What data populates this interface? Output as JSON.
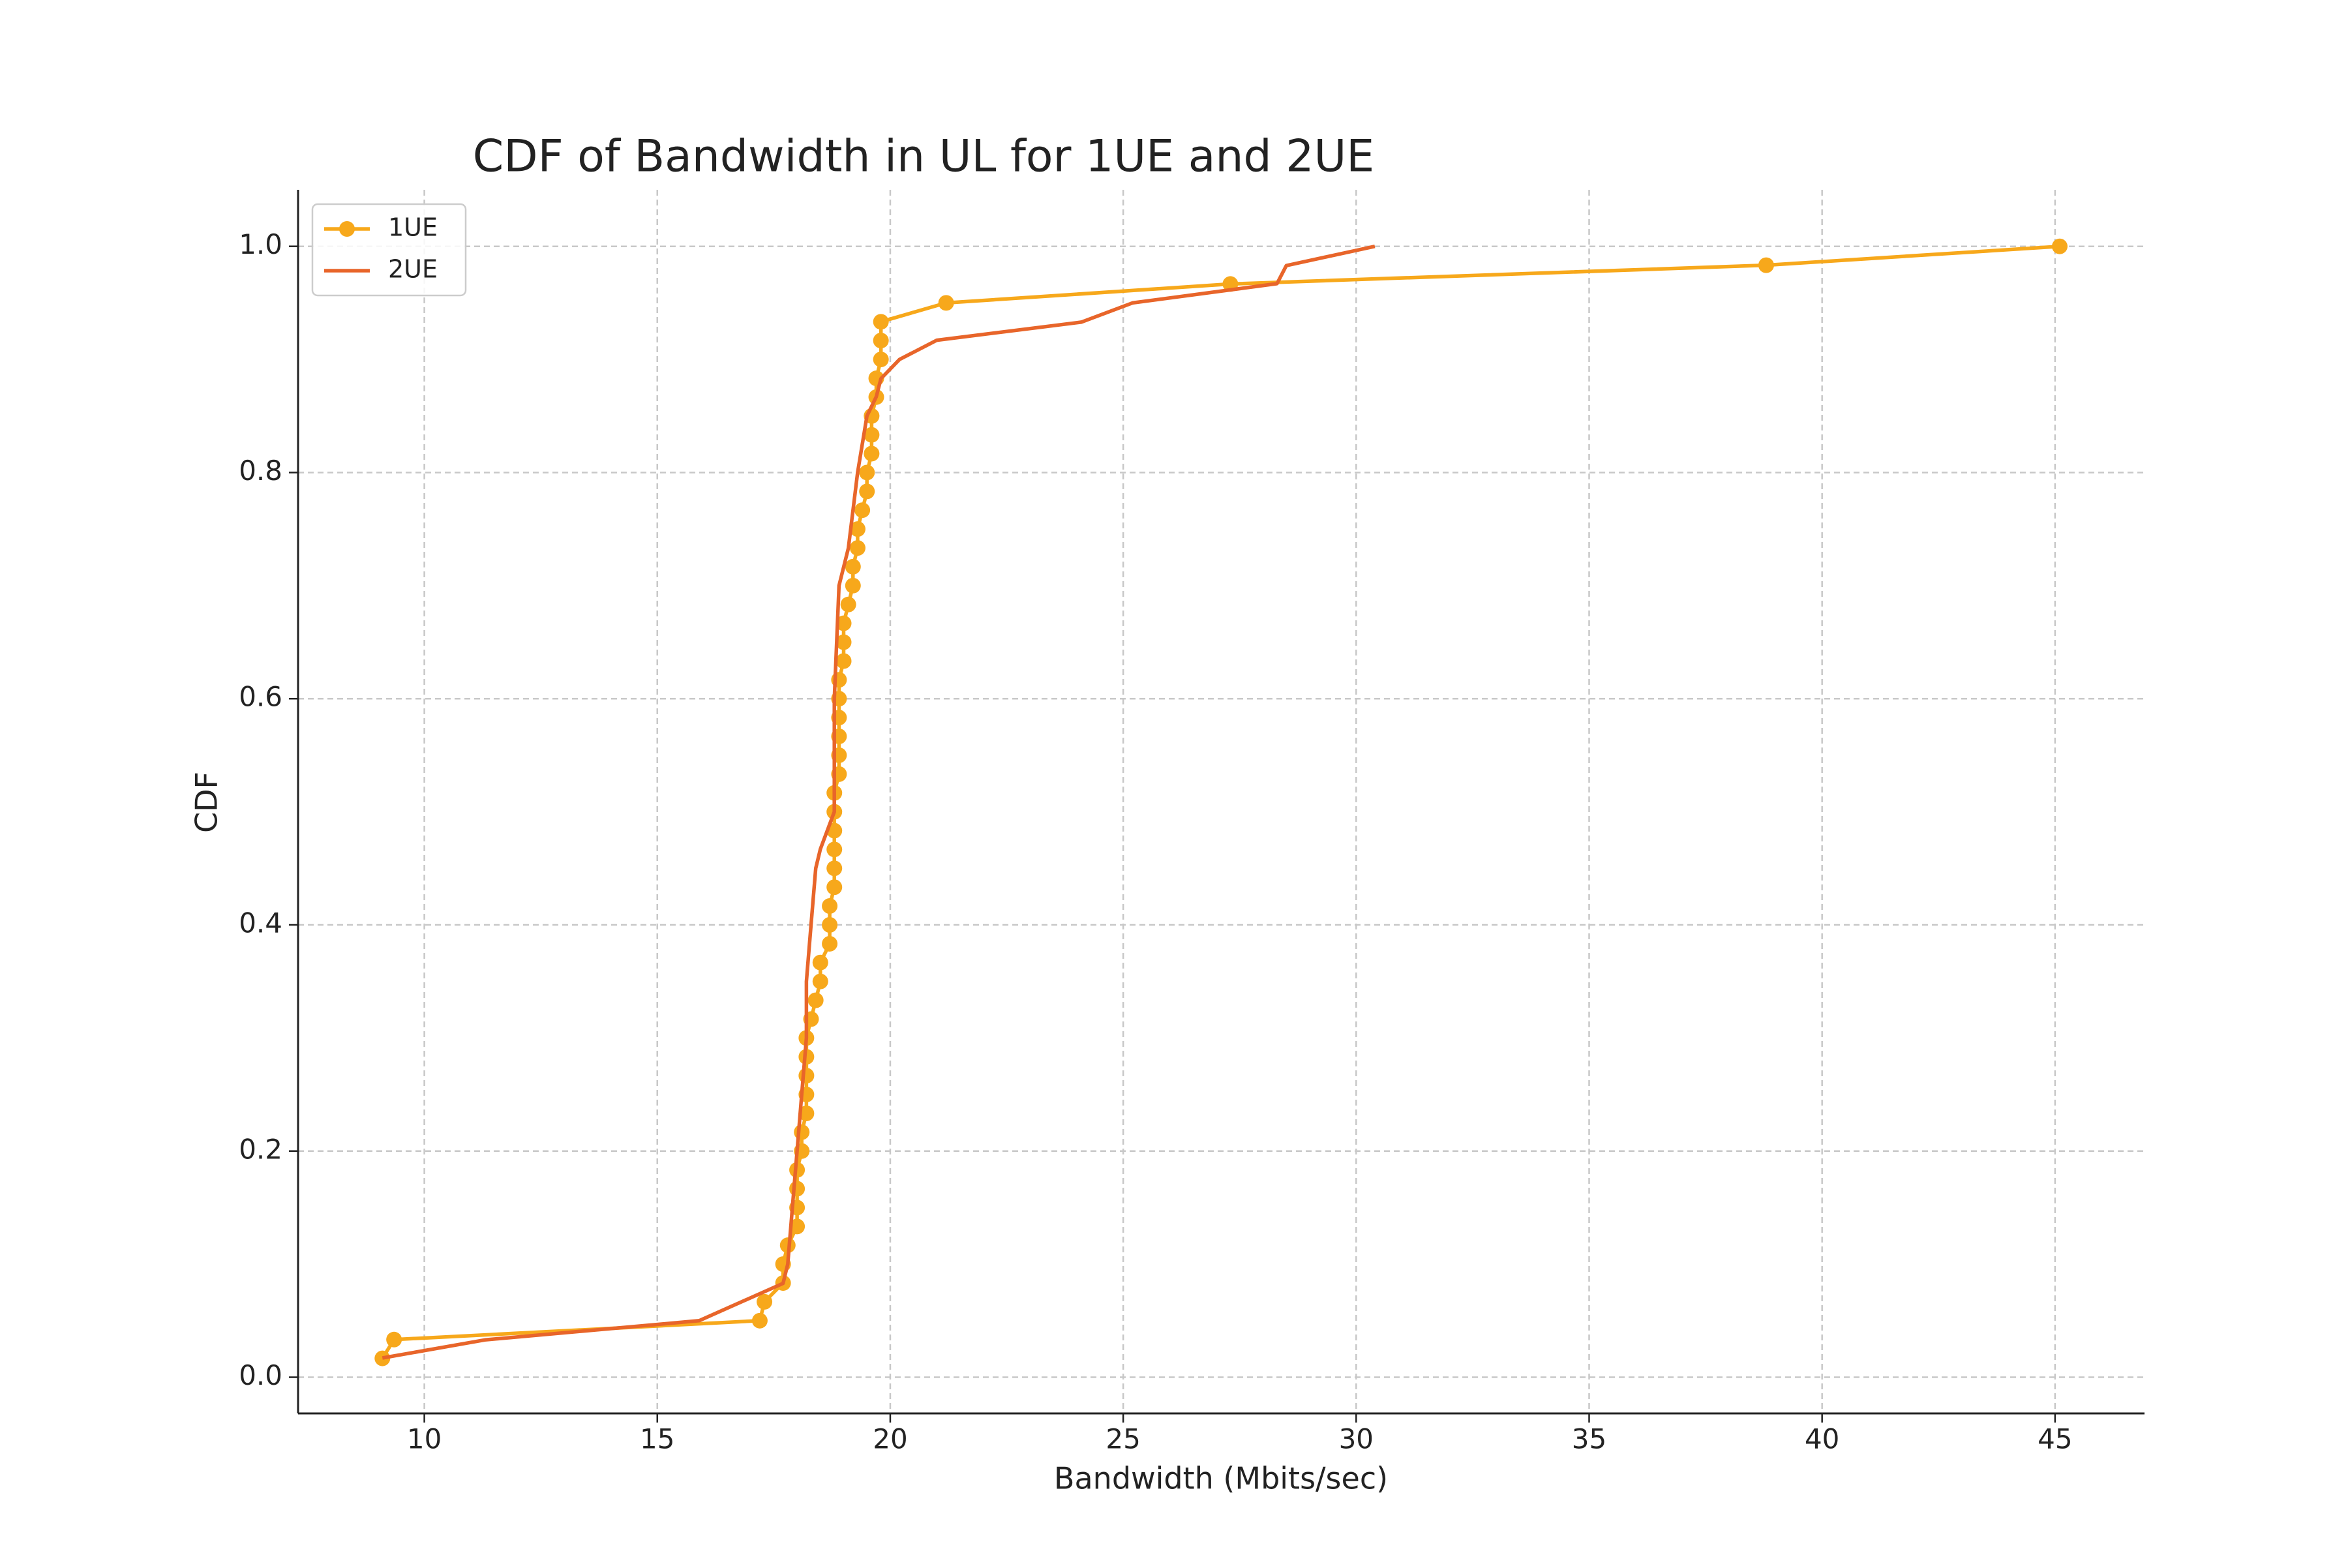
{
  "chart_data": {
    "type": "line",
    "title": "CDF of Bandwidth in UL for 1UE and 2UE",
    "x_label": "Bandwidth (Mbits/sec)",
    "y_label": "CDF",
    "xlim": [
      7.29,
      46.92
    ],
    "ylim": [
      -0.032,
      1.05
    ],
    "xticks": [
      10,
      15,
      20,
      25,
      30,
      35,
      40,
      45
    ],
    "yticks": [
      {
        "value": 0,
        "label": "0.0"
      },
      0.2,
      0.4,
      0.6,
      0.8,
      {
        "value": 1,
        "label": "1.0"
      }
    ],
    "grid": true,
    "legend": "upper-left",
    "series": [
      {
        "name": "1UE",
        "color": "#f7a81b",
        "marker": true,
        "x": [
          9.1,
          9.35,
          17.2,
          17.3,
          17.7,
          17.7,
          17.8,
          18.0,
          18.0,
          18.0,
          18.0,
          18.1,
          18.1,
          18.2,
          18.2,
          18.2,
          18.2,
          18.2,
          18.3,
          18.4,
          18.5,
          18.5,
          18.7,
          18.7,
          18.7,
          18.8,
          18.8,
          18.8,
          18.8,
          18.8,
          18.8,
          18.9,
          18.9,
          18.9,
          18.9,
          18.9,
          18.9,
          19.0,
          19.0,
          19.0,
          19.1,
          19.2,
          19.2,
          19.3,
          19.3,
          19.4,
          19.5,
          19.5,
          19.6,
          19.6,
          19.6,
          19.7,
          19.7,
          19.8,
          19.8,
          19.8,
          21.2,
          27.3,
          38.8,
          45.1
        ],
        "values": [
          0.0167,
          0.0333,
          0.05,
          0.0667,
          0.0833,
          0.1,
          0.1167,
          0.1333,
          0.15,
          0.1667,
          0.1833,
          0.2,
          0.2167,
          0.2333,
          0.25,
          0.2667,
          0.2833,
          0.3,
          0.3167,
          0.3333,
          0.35,
          0.3667,
          0.3833,
          0.4,
          0.4167,
          0.4333,
          0.45,
          0.4667,
          0.4833,
          0.5,
          0.5167,
          0.5333,
          0.55,
          0.5667,
          0.5833,
          0.6,
          0.6167,
          0.6333,
          0.65,
          0.6667,
          0.6833,
          0.7,
          0.7167,
          0.7333,
          0.75,
          0.7667,
          0.7833,
          0.8,
          0.8167,
          0.8333,
          0.85,
          0.8667,
          0.8833,
          0.9,
          0.9167,
          0.9333,
          0.95,
          0.9667,
          0.9833,
          1.0
        ]
      },
      {
        "name": "2UE",
        "color": "#e8652a",
        "marker": false,
        "x": [
          9.1,
          11.3,
          15.9,
          17.7,
          17.8,
          17.9,
          18.0,
          18.1,
          18.2,
          18.2,
          18.3,
          18.4,
          18.5,
          18.8,
          18.8,
          18.9,
          19.1,
          19.3,
          19.5,
          19.7,
          19.8,
          20.2,
          21.0,
          24.1,
          25.2,
          28.3,
          28.5,
          30.4
        ],
        "values": [
          0.017,
          0.033,
          0.05,
          0.083,
          0.1,
          0.15,
          0.2,
          0.25,
          0.3,
          0.35,
          0.4,
          0.45,
          0.467,
          0.5,
          0.6,
          0.7,
          0.733,
          0.8,
          0.85,
          0.867,
          0.883,
          0.9,
          0.917,
          0.933,
          0.95,
          0.967,
          0.983,
          1.0
        ]
      }
    ]
  }
}
